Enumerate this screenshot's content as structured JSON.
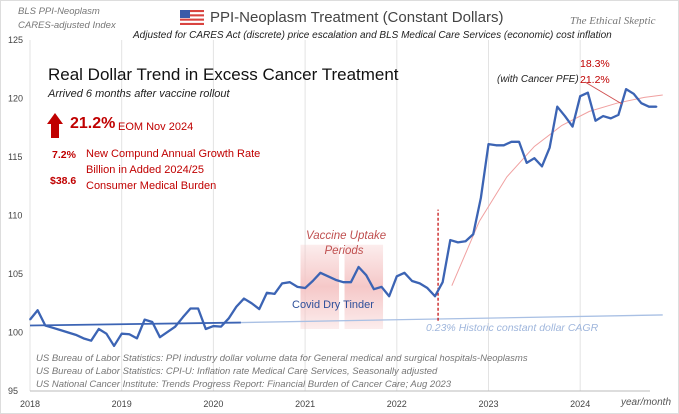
{
  "header": {
    "index_label_1": "BLS PPI-Neoplasm",
    "index_label_2": "CARES-adjusted Index",
    "title": "PPI-Neoplasm  Treatment  (Constant Dollars)",
    "subtitle": "Adjusted for CARES Act (discrete)  price escalation and BLS Medical Care Services (economic) cost inflation",
    "brand": "The Ethical Skeptic",
    "flag_icon": "us-flag-icon"
  },
  "callouts": {
    "headline": "Real Dollar Trend in Excess Cancer Treatment",
    "subheadline": "Arrived 6 months after vaccine rollout",
    "arrow_icon": "up-arrow-icon",
    "big_pct": "21.2%",
    "big_pct_label": "EOM Nov 2024",
    "cagr_value": "7.2%",
    "cagr_label": "New Compund Annual Growth Rate",
    "burden_value": "$38.6",
    "burden_label_1": "Billion in Added 2024/25",
    "burden_label_2": "Consumer Medical Burden",
    "pct_top": "18.3%",
    "pfe_label": "(with Cancer PFE)",
    "pct_pfe": "21.2%",
    "vaccine_1": "Vaccine Uptake",
    "vaccine_2": "Periods",
    "tinder": "Covid Dry Tinder",
    "historic": "0.23%  Historic constant dollar CAGR"
  },
  "sources": [
    "US Bureau of Labor Statistics: PPI industry dollar volume data for General medical and surgical hospitals-Neoplasms",
    "US Bureau of Labor Statistics: CPI-U: Inflation rate Medical Care Services, Seasonally adjusted",
    "US National Cancer Institute: Trends Progress Report: Financial Burden of Cancer Care; Aug 2023"
  ],
  "colors": {
    "series": "#3c64b4",
    "accent": "#c00000",
    "trend": "#a9c0e4",
    "fit": "#f0a0a0",
    "band": "#f4c2c2"
  },
  "chart_data": {
    "type": "line",
    "xlabel": "year/month",
    "ylabel": "",
    "ylim": [
      95,
      125
    ],
    "xlim": [
      2018,
      2024.9
    ],
    "yticks": [
      95,
      100,
      105,
      110,
      115,
      120,
      125
    ],
    "xticks": [
      "2018",
      "2019",
      "2020",
      "2021",
      "2022",
      "2023",
      "2024"
    ],
    "grid": "vertical",
    "series": [
      {
        "start": "2018-01",
        "frequency": "monthly",
        "values": [
          101.1,
          101.9,
          100.6,
          100.4,
          100.2,
          100.0,
          99.8,
          99.5,
          99.3,
          100.3,
          99.9,
          98.85,
          99.9,
          99.85,
          99.5,
          101.1,
          100.9,
          99.6,
          100.05,
          100.5,
          101.3,
          102.05,
          102.05,
          100.3,
          100.55,
          100.5,
          101.2,
          102.2,
          102.9,
          102.5,
          102.0,
          103.4,
          103.3,
          104.2,
          104.3,
          103.9,
          103.8,
          104.4,
          105.1,
          104.8,
          104.5,
          104.3,
          104.3,
          105.6,
          104.9,
          103.7,
          103.9,
          103.1,
          104.8,
          105.1,
          104.4,
          104.2,
          103.8,
          103.1,
          104.3,
          107.9,
          107.7,
          107.8,
          108.4,
          111.5,
          116.1,
          116.0,
          116.0,
          116.3,
          116.3,
          114.5,
          114.9,
          114.2,
          115.8,
          119.3,
          118.5,
          117.6,
          120.2,
          120.5,
          118.1,
          118.5,
          118.3,
          118.6,
          120.8,
          120.4,
          119.6,
          119.3,
          119.3
        ]
      }
    ],
    "baseline_trend": {
      "x": [
        2018.0,
        2020.3
      ],
      "y": [
        100.6,
        100.85
      ]
    },
    "historic_trend": {
      "x": [
        2020.3,
        2024.9
      ],
      "y": [
        100.85,
        101.5
      ]
    },
    "excess_fit": {
      "x": [
        2022.6,
        2022.9,
        2023.2,
        2023.5,
        2023.8,
        2024.1,
        2024.4,
        2024.7,
        2024.9
      ],
      "y": [
        104.0,
        109.5,
        113.3,
        115.9,
        117.7,
        118.9,
        119.6,
        120.1,
        120.3
      ]
    },
    "vaccine_period": [
      2020.95,
      2021.85
    ],
    "inflection": 2022.45
  }
}
